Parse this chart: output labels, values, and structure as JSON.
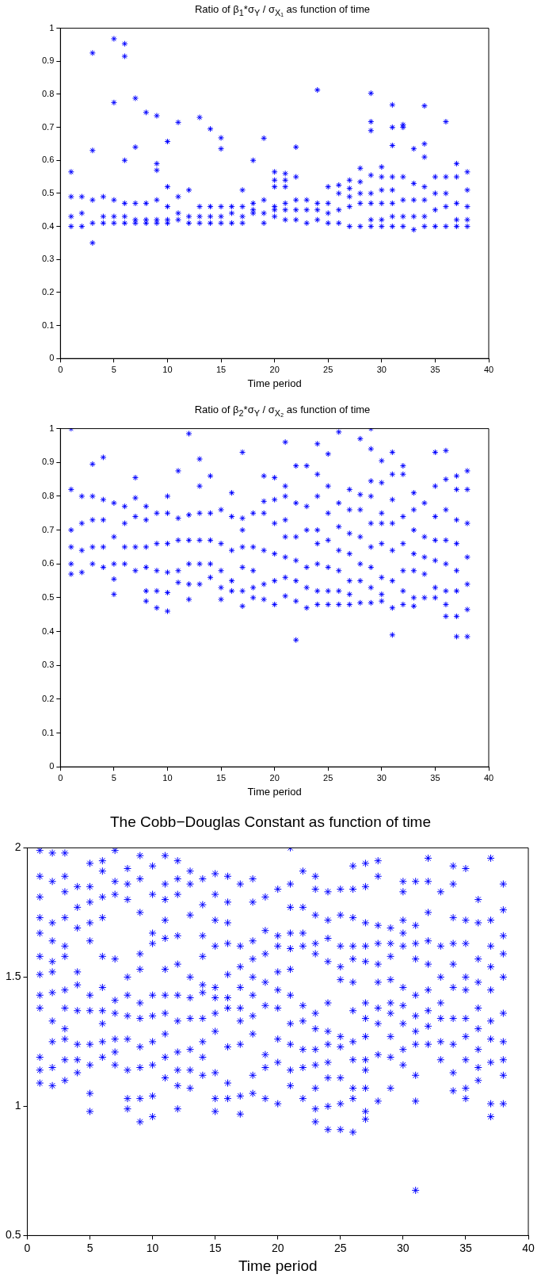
{
  "chart_data": [
    {
      "type": "scatter",
      "title": "Ratio of β$_{1}$*σ$_{Y}$ / σ$_{X₁}$ as function of time",
      "xlabel": "Time period",
      "xlim": [
        0,
        40
      ],
      "xticks": [
        0,
        5,
        10,
        15,
        20,
        25,
        30,
        35,
        40
      ],
      "ylim": [
        0,
        1
      ],
      "yticks": [
        0,
        0.1,
        0.2,
        0.3,
        0.4,
        0.5,
        0.6,
        0.7,
        0.8,
        0.9,
        1
      ],
      "grid": false,
      "legend": false,
      "marker": "cross",
      "series": [
        {
          "color": "#0000ff",
          "x": [
            1,
            1,
            1,
            1,
            2,
            2,
            2,
            3,
            3,
            3,
            3,
            3,
            4,
            4,
            4,
            5,
            5,
            5,
            5,
            5,
            6,
            6,
            6,
            6,
            6,
            6,
            7,
            7,
            7,
            7,
            7,
            8,
            8,
            8,
            8,
            9,
            9,
            9,
            9,
            9,
            9,
            10,
            10,
            10,
            10,
            10,
            11,
            11,
            11,
            11,
            12,
            12,
            12,
            13,
            13,
            13,
            13,
            14,
            14,
            14,
            14,
            15,
            15,
            15,
            15,
            15,
            16,
            16,
            16,
            17,
            17,
            17,
            17,
            18,
            18,
            18,
            18,
            19,
            19,
            19,
            19,
            20,
            20,
            20,
            20,
            20,
            20,
            21,
            21,
            21,
            21,
            21,
            21,
            22,
            22,
            22,
            22,
            22,
            23,
            23,
            23,
            24,
            24,
            24,
            24,
            25,
            25,
            25,
            25,
            26,
            26,
            26,
            26,
            27,
            27,
            27,
            27,
            27,
            28,
            28,
            28,
            28,
            28,
            29,
            29,
            29,
            29,
            29,
            29,
            29,
            29,
            30,
            30,
            30,
            30,
            30,
            30,
            31,
            31,
            31,
            31,
            31,
            31,
            31,
            31,
            32,
            32,
            32,
            32,
            32,
            32,
            33,
            33,
            33,
            33,
            33,
            34,
            34,
            34,
            34,
            34,
            34,
            34,
            35,
            35,
            35,
            35,
            36,
            36,
            36,
            36,
            36,
            37,
            37,
            37,
            37,
            37,
            38,
            38,
            38,
            38,
            38
          ],
          "values": [
            0.4,
            0.43,
            0.49,
            0.565,
            0.4,
            0.44,
            0.49,
            0.35,
            0.41,
            0.48,
            0.63,
            0.925,
            0.41,
            0.43,
            0.49,
            0.41,
            0.43,
            0.48,
            0.775,
            0.968,
            0.41,
            0.43,
            0.47,
            0.6,
            0.915,
            0.953,
            0.41,
            0.42,
            0.47,
            0.64,
            0.788,
            0.41,
            0.42,
            0.47,
            0.745,
            0.41,
            0.42,
            0.48,
            0.57,
            0.59,
            0.735,
            0.41,
            0.42,
            0.46,
            0.52,
            0.657,
            0.42,
            0.44,
            0.49,
            0.715,
            0.41,
            0.43,
            0.51,
            0.41,
            0.43,
            0.46,
            0.73,
            0.41,
            0.43,
            0.46,
            0.695,
            0.41,
            0.43,
            0.46,
            0.635,
            0.668,
            0.41,
            0.44,
            0.46,
            0.41,
            0.43,
            0.46,
            0.51,
            0.44,
            0.45,
            0.47,
            0.6,
            0.41,
            0.44,
            0.48,
            0.667,
            0.43,
            0.45,
            0.46,
            0.52,
            0.54,
            0.565,
            0.42,
            0.45,
            0.47,
            0.52,
            0.54,
            0.56,
            0.42,
            0.45,
            0.48,
            0.55,
            0.64,
            0.41,
            0.45,
            0.48,
            0.42,
            0.45,
            0.47,
            0.813,
            0.41,
            0.44,
            0.47,
            0.52,
            0.41,
            0.45,
            0.5,
            0.525,
            0.4,
            0.46,
            0.49,
            0.515,
            0.54,
            0.4,
            0.47,
            0.5,
            0.535,
            0.576,
            0.4,
            0.42,
            0.47,
            0.5,
            0.555,
            0.69,
            0.717,
            0.803,
            0.4,
            0.42,
            0.47,
            0.51,
            0.55,
            0.58,
            0.4,
            0.43,
            0.47,
            0.51,
            0.55,
            0.645,
            0.7,
            0.768,
            0.4,
            0.43,
            0.48,
            0.55,
            0.7,
            0.708,
            0.39,
            0.43,
            0.48,
            0.53,
            0.635,
            0.4,
            0.43,
            0.48,
            0.52,
            0.61,
            0.65,
            0.765,
            0.4,
            0.45,
            0.5,
            0.55,
            0.4,
            0.46,
            0.5,
            0.55,
            0.717,
            0.4,
            0.42,
            0.47,
            0.55,
            0.59,
            0.4,
            0.42,
            0.46,
            0.51,
            0.565
          ]
        }
      ]
    },
    {
      "type": "scatter",
      "title": "Ratio of β$_{2}$*σ$_{Y}$ / σ$_{X₂}$ as function of time",
      "xlabel": "Time period",
      "xlim": [
        0,
        40
      ],
      "xticks": [
        0,
        5,
        10,
        15,
        20,
        25,
        30,
        35,
        40
      ],
      "ylim": [
        0,
        1
      ],
      "yticks": [
        0,
        0.1,
        0.2,
        0.3,
        0.4,
        0.5,
        0.6,
        0.7,
        0.8,
        0.9,
        1
      ],
      "grid": false,
      "legend": false,
      "marker": "cross",
      "series": [
        {
          "color": "#0000ff",
          "x": [
            1,
            1,
            1,
            1,
            1,
            1,
            2,
            2,
            2,
            2,
            3,
            3,
            3,
            3,
            3,
            4,
            4,
            4,
            4,
            4,
            5,
            5,
            5,
            5,
            5,
            6,
            6,
            6,
            6,
            7,
            7,
            7,
            7,
            7,
            8,
            8,
            8,
            8,
            8,
            8,
            9,
            9,
            9,
            9,
            9,
            10,
            10,
            10,
            10,
            10,
            10,
            11,
            11,
            11,
            11,
            11,
            12,
            12,
            12,
            12,
            12,
            12,
            13,
            13,
            13,
            13,
            13,
            13,
            14,
            14,
            14,
            14,
            14,
            15,
            15,
            15,
            15,
            15,
            16,
            16,
            16,
            16,
            16,
            17,
            17,
            17,
            17,
            17,
            17,
            17,
            18,
            18,
            18,
            18,
            18,
            19,
            19,
            19,
            19,
            19,
            19,
            20,
            20,
            20,
            20,
            20,
            20,
            21,
            21,
            21,
            21,
            21,
            21,
            21,
            21,
            22,
            22,
            22,
            22,
            22,
            22,
            22,
            23,
            23,
            23,
            23,
            23,
            23,
            24,
            24,
            24,
            24,
            24,
            24,
            24,
            24,
            25,
            25,
            25,
            25,
            25,
            25,
            25,
            26,
            26,
            26,
            26,
            26,
            26,
            26,
            27,
            27,
            27,
            27,
            27,
            27,
            27,
            28,
            28,
            28,
            28,
            28,
            28,
            28,
            29,
            29,
            29,
            29,
            29,
            29,
            29,
            29,
            29,
            30,
            30,
            30,
            30,
            30,
            30,
            30,
            30,
            31,
            31,
            31,
            31,
            31,
            31,
            31,
            31,
            32,
            32,
            32,
            32,
            32,
            32,
            32,
            33,
            33,
            33,
            33,
            33,
            33,
            33,
            34,
            34,
            34,
            34,
            34,
            35,
            35,
            35,
            35,
            35,
            35,
            35,
            36,
            36,
            36,
            36,
            36,
            36,
            36,
            36,
            37,
            37,
            37,
            37,
            37,
            37,
            37,
            37,
            38,
            38,
            38,
            38,
            38,
            38,
            38
          ],
          "values": [
            0.57,
            0.6,
            0.65,
            0.7,
            0.82,
            1.0,
            0.575,
            0.64,
            0.72,
            0.8,
            0.6,
            0.65,
            0.73,
            0.8,
            0.895,
            0.59,
            0.65,
            0.73,
            0.79,
            0.915,
            0.51,
            0.555,
            0.6,
            0.68,
            0.78,
            0.6,
            0.65,
            0.72,
            0.77,
            0.58,
            0.65,
            0.74,
            0.795,
            0.855,
            0.49,
            0.52,
            0.59,
            0.65,
            0.73,
            0.77,
            0.47,
            0.52,
            0.58,
            0.66,
            0.75,
            0.46,
            0.515,
            0.575,
            0.66,
            0.75,
            0.8,
            0.545,
            0.58,
            0.67,
            0.735,
            0.875,
            0.495,
            0.54,
            0.6,
            0.67,
            0.745,
            0.985,
            0.54,
            0.6,
            0.67,
            0.75,
            0.83,
            0.91,
            0.56,
            0.6,
            0.67,
            0.75,
            0.86,
            0.495,
            0.53,
            0.58,
            0.66,
            0.76,
            0.52,
            0.55,
            0.64,
            0.74,
            0.81,
            0.475,
            0.52,
            0.59,
            0.65,
            0.7,
            0.735,
            0.93,
            0.5,
            0.53,
            0.58,
            0.65,
            0.75,
            0.495,
            0.54,
            0.64,
            0.75,
            0.785,
            0.86,
            0.48,
            0.55,
            0.63,
            0.72,
            0.79,
            0.855,
            0.505,
            0.56,
            0.62,
            0.68,
            0.73,
            0.8,
            0.83,
            0.96,
            0.375,
            0.49,
            0.55,
            0.61,
            0.68,
            0.78,
            0.89,
            0.47,
            0.53,
            0.59,
            0.7,
            0.77,
            0.89,
            0.48,
            0.52,
            0.6,
            0.66,
            0.7,
            0.8,
            0.865,
            0.955,
            0.48,
            0.52,
            0.59,
            0.67,
            0.75,
            0.83,
            0.925,
            0.48,
            0.52,
            0.58,
            0.64,
            0.71,
            0.78,
            0.99,
            0.48,
            0.51,
            0.55,
            0.63,
            0.69,
            0.76,
            0.82,
            0.485,
            0.55,
            0.6,
            0.68,
            0.76,
            0.805,
            0.97,
            0.485,
            0.53,
            0.59,
            0.65,
            0.72,
            0.8,
            0.845,
            0.94,
            1.0,
            0.49,
            0.51,
            0.56,
            0.66,
            0.72,
            0.75,
            0.84,
            0.905,
            0.39,
            0.47,
            0.55,
            0.64,
            0.72,
            0.79,
            0.865,
            0.93,
            0.48,
            0.52,
            0.58,
            0.66,
            0.74,
            0.865,
            0.89,
            0.475,
            0.5,
            0.58,
            0.63,
            0.7,
            0.76,
            0.81,
            0.5,
            0.57,
            0.62,
            0.68,
            0.78,
            0.5,
            0.53,
            0.61,
            0.67,
            0.74,
            0.83,
            0.93,
            0.445,
            0.48,
            0.52,
            0.6,
            0.67,
            0.76,
            0.85,
            0.935,
            0.385,
            0.445,
            0.52,
            0.58,
            0.66,
            0.73,
            0.82,
            0.86,
            0.385,
            0.465,
            0.54,
            0.62,
            0.72,
            0.82,
            0.875
          ]
        }
      ]
    },
    {
      "type": "scatter",
      "title": "The Cobb−Douglas Constant as function of time",
      "xlabel": "Time period",
      "xlim": [
        0,
        40
      ],
      "xticks": [
        0,
        5,
        10,
        15,
        20,
        25,
        30,
        35,
        40
      ],
      "ylim": [
        0.5,
        2
      ],
      "yticks": [
        0.5,
        1,
        1.5,
        2
      ],
      "grid": false,
      "legend": false,
      "marker": "cross",
      "series": [
        {
          "color": "#0000ff",
          "x": [
            1,
            1,
            1,
            1,
            1,
            1,
            1,
            1,
            1,
            1,
            1,
            1,
            2,
            2,
            2,
            2,
            2,
            2,
            2,
            2,
            2,
            2,
            2,
            3,
            3,
            3,
            3,
            3,
            3,
            3,
            3,
            3,
            3,
            3,
            3,
            4,
            4,
            4,
            4,
            4,
            4,
            4,
            4,
            4,
            5,
            5,
            5,
            5,
            5,
            5,
            5,
            5,
            5,
            5,
            5,
            6,
            6,
            6,
            6,
            6,
            6,
            6,
            6,
            6,
            6,
            7,
            7,
            7,
            7,
            7,
            7,
            7,
            7,
            7,
            8,
            8,
            8,
            8,
            8,
            8,
            8,
            8,
            8,
            8,
            9,
            9,
            9,
            9,
            9,
            9,
            9,
            9,
            9,
            9,
            9,
            10,
            10,
            10,
            10,
            10,
            10,
            10,
            10,
            10,
            10,
            11,
            11,
            11,
            11,
            11,
            11,
            11,
            11,
            11,
            11,
            11,
            12,
            12,
            12,
            12,
            12,
            12,
            12,
            12,
            12,
            12,
            12,
            13,
            13,
            13,
            13,
            13,
            13,
            13,
            13,
            13,
            14,
            14,
            14,
            14,
            14,
            14,
            14,
            14,
            14,
            14,
            15,
            15,
            15,
            15,
            15,
            15,
            15,
            15,
            15,
            15,
            15,
            16,
            16,
            16,
            16,
            16,
            16,
            16,
            16,
            16,
            16,
            17,
            17,
            17,
            17,
            17,
            17,
            17,
            17,
            17,
            18,
            18,
            18,
            18,
            18,
            18,
            18,
            18,
            18,
            18,
            19,
            19,
            19,
            19,
            19,
            19,
            19,
            19,
            20,
            20,
            20,
            20,
            20,
            20,
            20,
            20,
            20,
            21,
            21,
            21,
            21,
            21,
            21,
            21,
            21,
            21,
            21,
            21,
            22,
            22,
            22,
            22,
            22,
            22,
            22,
            22,
            22,
            23,
            23,
            23,
            23,
            23,
            23,
            23,
            23,
            23,
            23,
            23,
            23,
            24,
            24,
            24,
            24,
            24,
            24,
            24,
            24,
            24,
            24,
            24,
            25,
            25,
            25,
            25,
            25,
            25,
            25,
            25,
            25,
            25,
            26,
            26,
            26,
            26,
            26,
            26,
            26,
            26,
            26,
            26,
            26,
            26,
            27,
            27,
            27,
            27,
            27,
            27,
            27,
            27,
            27,
            27,
            27,
            27,
            27,
            28,
            28,
            28,
            28,
            28,
            28,
            28,
            28,
            28,
            28,
            29,
            29,
            29,
            29,
            29,
            29,
            29,
            29,
            29,
            30,
            30,
            30,
            30,
            30,
            30,
            30,
            30,
            30,
            30,
            31,
            31,
            31,
            31,
            31,
            31,
            31,
            31,
            31,
            31,
            31,
            32,
            32,
            32,
            32,
            32,
            32,
            32,
            32,
            32,
            33,
            33,
            33,
            33,
            33,
            33,
            33,
            34,
            34,
            34,
            34,
            34,
            34,
            34,
            34,
            34,
            34,
            35,
            35,
            35,
            35,
            35,
            35,
            35,
            35,
            35,
            35,
            36,
            36,
            36,
            36,
            36,
            36,
            36,
            36,
            36,
            37,
            37,
            37,
            37,
            37,
            37,
            37,
            37,
            37,
            37,
            38,
            38,
            38,
            38,
            38,
            38,
            38,
            38,
            38,
            38
          ],
          "values": [
            1.09,
            1.14,
            1.19,
            1.38,
            1.43,
            1.51,
            1.58,
            1.67,
            1.73,
            1.81,
            1.89,
            1.99,
            1.08,
            1.15,
            1.25,
            1.33,
            1.44,
            1.52,
            1.56,
            1.64,
            1.71,
            1.87,
            1.98,
            1.1,
            1.18,
            1.26,
            1.3,
            1.38,
            1.45,
            1.58,
            1.62,
            1.73,
            1.83,
            1.89,
            1.98,
            1.13,
            1.18,
            1.24,
            1.37,
            1.47,
            1.52,
            1.69,
            1.77,
            1.85,
            0.98,
            1.05,
            1.16,
            1.24,
            1.37,
            1.43,
            1.64,
            1.71,
            1.79,
            1.85,
            1.94,
            1.19,
            1.25,
            1.32,
            1.37,
            1.46,
            1.58,
            1.73,
            1.81,
            1.91,
            1.95,
            1.16,
            1.21,
            1.26,
            1.36,
            1.41,
            1.57,
            1.82,
            1.87,
            1.99,
            0.99,
            1.03,
            1.14,
            1.26,
            1.35,
            1.43,
            1.5,
            1.8,
            1.86,
            1.92,
            0.94,
            1.03,
            1.15,
            1.23,
            1.34,
            1.4,
            1.53,
            1.59,
            1.75,
            1.88,
            1.97,
            0.96,
            1.04,
            1.16,
            1.25,
            1.35,
            1.43,
            1.63,
            1.67,
            1.82,
            1.93,
            1.11,
            1.19,
            1.28,
            1.36,
            1.43,
            1.53,
            1.65,
            1.72,
            1.8,
            1.86,
            1.97,
            0.99,
            1.08,
            1.14,
            1.21,
            1.33,
            1.43,
            1.55,
            1.66,
            1.82,
            1.88,
            1.95,
            1.07,
            1.14,
            1.22,
            1.34,
            1.42,
            1.5,
            1.74,
            1.86,
            1.91,
            1.12,
            1.19,
            1.25,
            1.34,
            1.44,
            1.47,
            1.58,
            1.66,
            1.78,
            1.88,
            0.98,
            1.03,
            1.13,
            1.29,
            1.36,
            1.42,
            1.46,
            1.62,
            1.72,
            1.82,
            1.9,
            1.03,
            1.09,
            1.23,
            1.38,
            1.42,
            1.51,
            1.63,
            1.71,
            1.79,
            1.89,
            0.97,
            1.04,
            1.24,
            1.33,
            1.38,
            1.46,
            1.54,
            1.62,
            1.86,
            1.05,
            1.12,
            1.28,
            1.35,
            1.43,
            1.5,
            1.57,
            1.64,
            1.79,
            1.88,
            1.03,
            1.15,
            1.2,
            1.39,
            1.48,
            1.59,
            1.68,
            1.81,
            1.01,
            1.17,
            1.26,
            1.38,
            1.45,
            1.52,
            1.62,
            1.66,
            1.84,
            1.08,
            1.14,
            1.24,
            1.32,
            1.43,
            1.53,
            1.61,
            1.67,
            1.77,
            1.86,
            2.0,
            1.03,
            1.15,
            1.22,
            1.33,
            1.39,
            1.62,
            1.67,
            1.77,
            1.91,
            0.94,
            0.99,
            1.07,
            1.16,
            1.22,
            1.3,
            1.36,
            1.59,
            1.63,
            1.74,
            1.84,
            1.89,
            0.91,
            1.0,
            1.11,
            1.17,
            1.24,
            1.29,
            1.4,
            1.56,
            1.65,
            1.72,
            1.83,
            0.91,
            1.01,
            1.11,
            1.23,
            1.27,
            1.49,
            1.54,
            1.62,
            1.74,
            1.84,
            0.9,
            1.03,
            1.07,
            1.18,
            1.25,
            1.37,
            1.48,
            1.57,
            1.62,
            1.73,
            1.84,
            1.93,
            0.95,
            0.98,
            1.07,
            1.14,
            1.18,
            1.27,
            1.34,
            1.4,
            1.56,
            1.62,
            1.71,
            1.85,
            1.94,
            1.02,
            1.2,
            1.32,
            1.38,
            1.48,
            1.55,
            1.63,
            1.7,
            1.89,
            1.95,
            1.07,
            1.19,
            1.27,
            1.36,
            1.4,
            1.49,
            1.58,
            1.63,
            1.69,
            1.16,
            1.22,
            1.32,
            1.39,
            1.46,
            1.62,
            1.67,
            1.72,
            1.83,
            1.87,
            0.675,
            1.02,
            1.12,
            1.24,
            1.29,
            1.35,
            1.43,
            1.57,
            1.63,
            1.7,
            1.87,
            1.24,
            1.31,
            1.37,
            1.45,
            1.55,
            1.64,
            1.75,
            1.87,
            1.96,
            1.18,
            1.25,
            1.34,
            1.4,
            1.5,
            1.62,
            1.83,
            1.06,
            1.13,
            1.24,
            1.34,
            1.46,
            1.55,
            1.63,
            1.73,
            1.86,
            1.93,
            1.03,
            1.07,
            1.18,
            1.27,
            1.34,
            1.45,
            1.5,
            1.63,
            1.72,
            1.92,
            1.1,
            1.15,
            1.22,
            1.3,
            1.38,
            1.48,
            1.57,
            1.71,
            1.8,
            0.96,
            1.01,
            1.17,
            1.26,
            1.33,
            1.45,
            1.54,
            1.62,
            1.72,
            1.96,
            1.01,
            1.12,
            1.18,
            1.25,
            1.36,
            1.5,
            1.59,
            1.66,
            1.76,
            1.86
          ]
        }
      ]
    }
  ]
}
